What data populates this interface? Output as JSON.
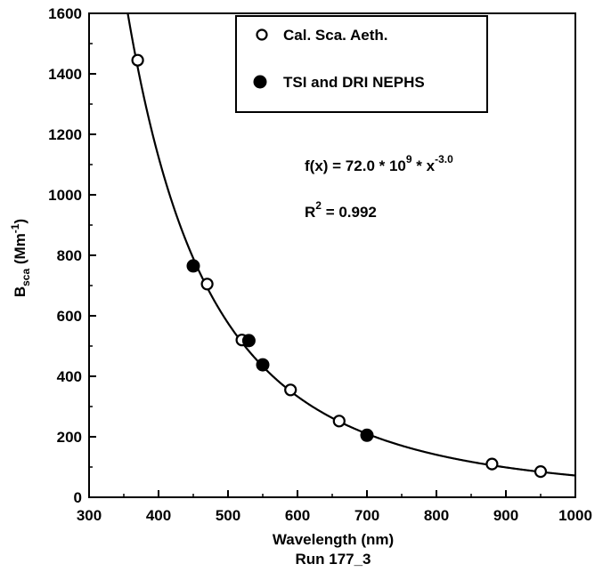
{
  "chart_data": {
    "type": "scatter",
    "x_axis": {
      "title": "Wavelength (nm)",
      "range": [
        300,
        1000
      ],
      "ticks": [
        300,
        400,
        500,
        600,
        700,
        800,
        900,
        1000
      ]
    },
    "y_axis": {
      "title_main": "B",
      "title_sub": "sca",
      "title_units": " (Mm",
      "title_units_sup": "-1",
      "title_units_close": ")",
      "range": [
        0,
        1600
      ],
      "ticks": [
        0,
        200,
        400,
        600,
        800,
        1000,
        1200,
        1400,
        1600
      ]
    },
    "subtitle": "Run 177_3",
    "grid": false,
    "legend": {
      "position": "top-right",
      "entries": [
        {
          "marker": "open-circle",
          "label": "Cal. Sca. Aeth."
        },
        {
          "marker": "filled-circle",
          "label": "TSI and DRI NEPHS"
        }
      ]
    },
    "series": [
      {
        "name": "Cal. Sca. Aeth.",
        "marker": "open-circle",
        "points": [
          {
            "x": 370,
            "y": 1445
          },
          {
            "x": 470,
            "y": 705
          },
          {
            "x": 520,
            "y": 520
          },
          {
            "x": 590,
            "y": 355
          },
          {
            "x": 660,
            "y": 252
          },
          {
            "x": 880,
            "y": 110
          },
          {
            "x": 950,
            "y": 85
          }
        ]
      },
      {
        "name": "TSI and DRI NEPHS",
        "marker": "filled-circle",
        "points": [
          {
            "x": 450,
            "y": 765
          },
          {
            "x": 530,
            "y": 518
          },
          {
            "x": 550,
            "y": 438
          },
          {
            "x": 700,
            "y": 205
          }
        ]
      }
    ],
    "fit": {
      "coefficient": 72000000000.0,
      "exponent": -3.0,
      "x_range": [
        300,
        1000
      ],
      "equation_prefix": "f(x) = 72.0 * 10",
      "equation_exp1": "9",
      "equation_mid": " * x",
      "equation_exp2": "-3.0",
      "r2_prefix": "R",
      "r2_sup": "2",
      "r2_suffix": " = 0.992"
    }
  }
}
